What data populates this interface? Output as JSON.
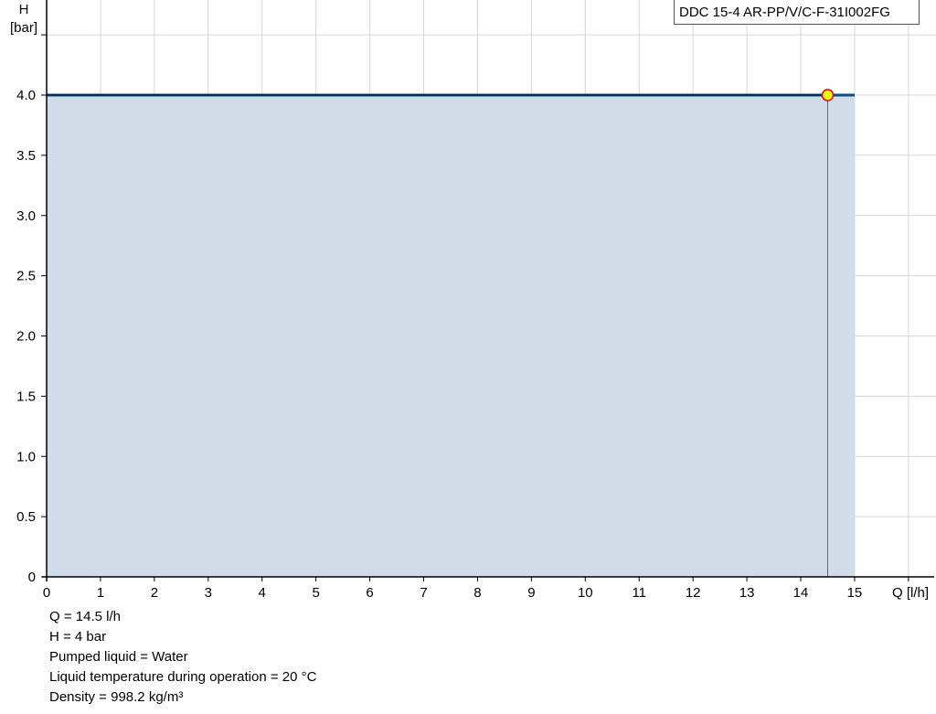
{
  "chart_data": {
    "type": "area",
    "title": "DDC 15-4 AR-PP/V/C-F-31I002FG",
    "xlabel": "Q [l/h]",
    "ylabel_lines": [
      "H",
      "[bar]"
    ],
    "xlim": [
      0,
      16.5
    ],
    "ylim": [
      0,
      4.8
    ],
    "x_ticks": [
      0,
      1,
      2,
      3,
      4,
      5,
      6,
      7,
      8,
      9,
      10,
      11,
      12,
      13,
      14,
      15
    ],
    "y_ticks": [
      0,
      0.5,
      1.0,
      1.5,
      2.0,
      2.5,
      3.0,
      3.5,
      4.0
    ],
    "y_tick_labels": [
      "0",
      "0.5",
      "1.0",
      "1.5",
      "2.0",
      "2.5",
      "3.0",
      "3.5",
      "4.0"
    ],
    "grid": true,
    "series": [
      {
        "x": [
          0,
          15
        ],
        "y": [
          4,
          4
        ]
      }
    ],
    "operating_point": {
      "x": 14.5,
      "y": 4
    },
    "colors": {
      "curve": "#0a4d8c",
      "fill": "#d0dce8",
      "point_fill": "#ffff00",
      "point_stroke": "#e00000"
    }
  },
  "info": [
    "Q = 14.5 l/h",
    "H = 4 bar",
    "Pumped liquid = Water",
    "Liquid temperature during operation = 20 °C",
    "Density = 998.2 kg/m³"
  ]
}
